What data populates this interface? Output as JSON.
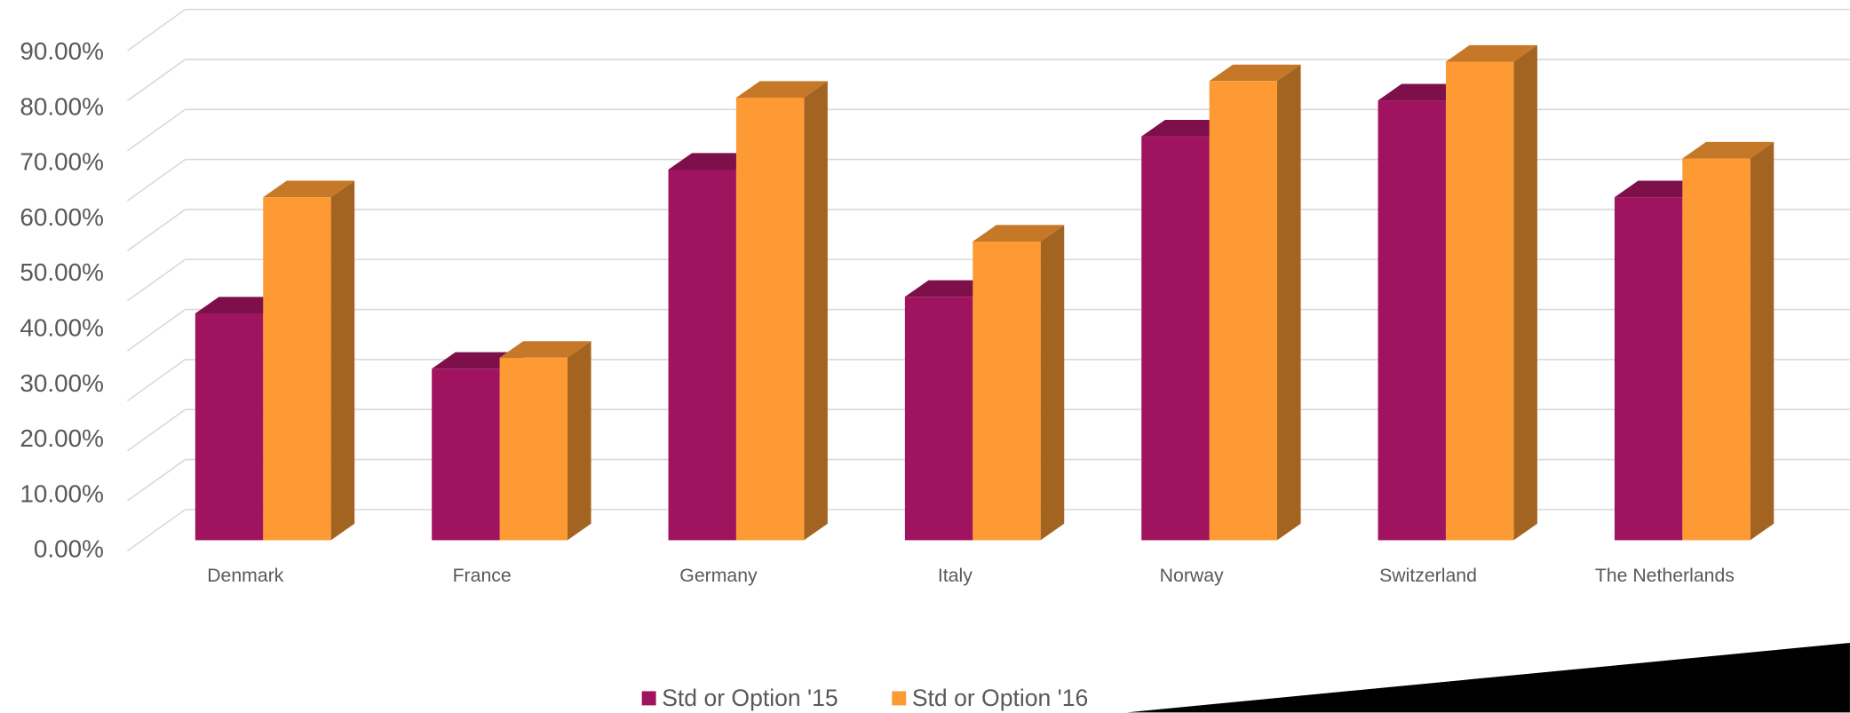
{
  "chart_data": {
    "type": "bar3d",
    "categories": [
      "Denmark",
      "France",
      "Germany",
      "Italy",
      "Norway",
      "Switzerland",
      "The Netherlands"
    ],
    "series": [
      {
        "name": "Std or Option '15",
        "color": "#a0135f",
        "values": [
          41,
          31,
          67,
          44,
          73,
          79.5,
          62
        ]
      },
      {
        "name": "Std or Option '16",
        "color": "#fd9a33",
        "values": [
          62,
          33,
          80,
          54,
          83,
          86.5,
          69
        ]
      }
    ],
    "ylim": [
      0,
      100
    ],
    "yticks": [
      {
        "value": 0,
        "label": "0.00%"
      },
      {
        "value": 10,
        "label": "10.00%"
      },
      {
        "value": 20,
        "label": "20.00%"
      },
      {
        "value": 30,
        "label": "30.00%"
      },
      {
        "value": 40,
        "label": "40.00%"
      },
      {
        "value": 50,
        "label": "50.00%"
      },
      {
        "value": 60,
        "label": "60.00%"
      },
      {
        "value": 70,
        "label": "70.00%"
      },
      {
        "value": 80,
        "label": "80.00%"
      },
      {
        "value": 90,
        "label": "90.00%"
      },
      {
        "value": 100,
        "label": ""
      }
    ],
    "grid": true,
    "legend": "bottom"
  }
}
